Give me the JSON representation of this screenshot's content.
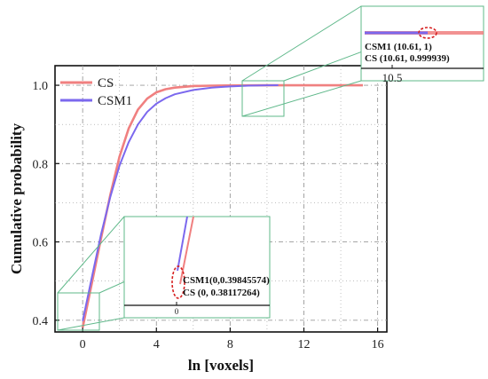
{
  "chart_data": {
    "type": "line",
    "title": "",
    "xlabel": "ln [voxels]",
    "ylabel": "Cumulative probability",
    "xlim": [
      -1.5,
      16.5
    ],
    "ylim": [
      0.37,
      1.05
    ],
    "x_ticks": [
      "0",
      "4",
      "8",
      "12",
      "16"
    ],
    "y_ticks": [
      "0.4",
      "0.6",
      "0.8",
      "1.0"
    ],
    "grid": true,
    "legend_position": "top-left",
    "series": [
      {
        "name": "CS",
        "color": "#f08080",
        "x": [
          0,
          0.5,
          1,
          1.5,
          2,
          2.5,
          3,
          3.5,
          4,
          4.5,
          5,
          6,
          7,
          8,
          9,
          10,
          11,
          12,
          13,
          14,
          15.2
        ],
        "y": [
          0.381,
          0.495,
          0.61,
          0.72,
          0.818,
          0.89,
          0.938,
          0.966,
          0.982,
          0.99,
          0.994,
          0.998,
          0.999,
          0.9995,
          0.9998,
          0.9999,
          0.999939,
          1.0,
          1.0,
          1.0,
          1.0
        ]
      },
      {
        "name": "CSM1",
        "color": "#7b68ee",
        "x": [
          0,
          0.5,
          1,
          1.5,
          2,
          2.5,
          3,
          3.5,
          4,
          4.5,
          5,
          6,
          7,
          8,
          9,
          10,
          10.61
        ],
        "y": [
          0.398,
          0.51,
          0.62,
          0.715,
          0.795,
          0.855,
          0.9,
          0.932,
          0.953,
          0.967,
          0.977,
          0.988,
          0.994,
          0.997,
          0.999,
          0.9998,
          1.0
        ]
      }
    ],
    "annotations": {
      "top_inset": {
        "tick": "10.5",
        "labels": [
          "CSM1 (10.61, 1)",
          "CS (10.61, 0.999939)"
        ]
      },
      "bottom_inset": {
        "tick": "0",
        "labels": [
          "CSM1(0,0.39845574)",
          "CS (0, 0.38117264)"
        ]
      }
    }
  }
}
